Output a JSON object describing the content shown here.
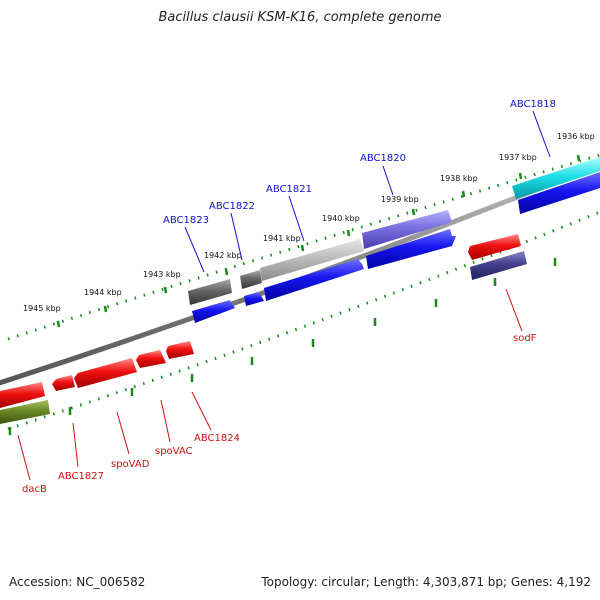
{
  "title": "Bacillus clausii KSM-K16, complete genome",
  "footer": {
    "accession": "Accession: NC_006582",
    "topology": "Topology: circular; Length: 4,303,871 bp; Genes: 4,192"
  },
  "kbp_labels": [
    "1936 kbp",
    "1937 kbp",
    "1938 kbp",
    "1939 kbp",
    "1940 kbp",
    "1941 kbp",
    "1942 kbp",
    "1943 kbp",
    "1944 kbp",
    "1945 kbp"
  ],
  "gene_labels_top": [
    "ABC1818",
    "ABC1820",
    "ABC1821",
    "ABC1822",
    "ABC1823"
  ],
  "gene_labels_bottom": [
    "sodF",
    "ABC1824",
    "spoVAC",
    "spoVAD",
    "ABC1827",
    "dacB"
  ],
  "colors": {
    "backbone": "#888888",
    "forward_cds": "#1010e0",
    "reverse_cds": "#ee1010",
    "tick": "#1a8a1a",
    "label_blue": "#1010cc",
    "label_red": "#cc1010"
  }
}
